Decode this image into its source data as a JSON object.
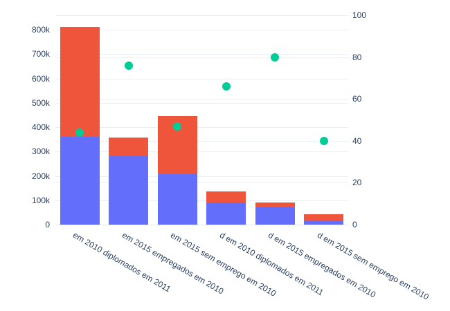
{
  "chart_data": {
    "type": "bar",
    "subtype": "stacked-bars-with-scatter-overlay",
    "title": "",
    "legend": false,
    "grid": true,
    "categories": [
      "em 2010 diplomados em 2011",
      "em 2015 empregados em 2010",
      "em 2015 sem emprego em 2010",
      "d em 2010 diplomados em 2011",
      "d em 2015 empregados em 2010",
      "d em 2015 sem emprego em 2010"
    ],
    "series": [
      {
        "name": "bottom-segment",
        "type": "bar",
        "axis": "left",
        "color": "#636efa",
        "values": [
          360000,
          280000,
          207000,
          90000,
          70000,
          13000
        ]
      },
      {
        "name": "top-segment",
        "type": "bar",
        "axis": "left",
        "color": "#ef553b",
        "values": [
          450000,
          78000,
          239000,
          46000,
          21000,
          30000
        ]
      },
      {
        "name": "rate-dots",
        "type": "scatter",
        "axis": "right",
        "color": "#00cc96",
        "values": [
          44,
          76,
          47,
          66,
          80,
          40
        ]
      }
    ],
    "left_axis": {
      "ticks": [
        "0",
        "100k",
        "200k",
        "300k",
        "400k",
        "500k",
        "600k",
        "700k",
        "800k"
      ],
      "tick_step": 100000,
      "max": 800000
    },
    "right_axis": {
      "ticks": [
        "0",
        "20",
        "40",
        "60",
        "80",
        "100"
      ],
      "tick_step": 20,
      "max": 100
    },
    "colors": {
      "grid": "#ebf0f8",
      "axis_text": "#2a3f5f",
      "background": "#ffffff"
    }
  }
}
